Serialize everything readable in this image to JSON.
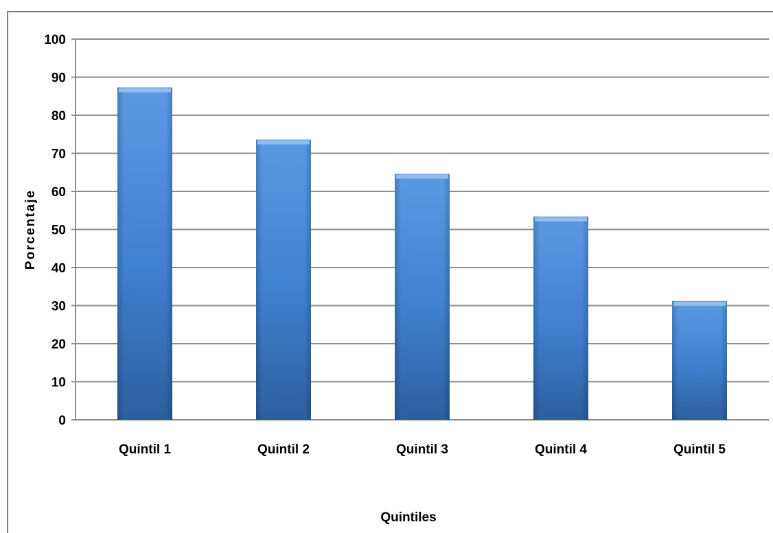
{
  "chart_data": {
    "type": "bar",
    "title": "",
    "xlabel": "Quintiles",
    "ylabel": "Porcentaje",
    "categories": [
      "Quintil 1",
      "Quintil 2",
      "Quintil 3",
      "Quintil 4",
      "Quintil 5"
    ],
    "values": [
      87.3,
      73.6,
      64.6,
      53.4,
      31.2
    ],
    "ylim": [
      0,
      100
    ],
    "yticks": [
      "0",
      "10",
      "20",
      "30",
      "40",
      "50",
      "60",
      "70",
      "80",
      "90",
      "100"
    ],
    "grid": true,
    "legend": "none",
    "colors": {
      "bar_top": "#5a9ae4",
      "bar_mid": "#3f7fcf",
      "bar_bottom": "#2c5f9e",
      "bar_cap": "#9cc6f2"
    }
  }
}
